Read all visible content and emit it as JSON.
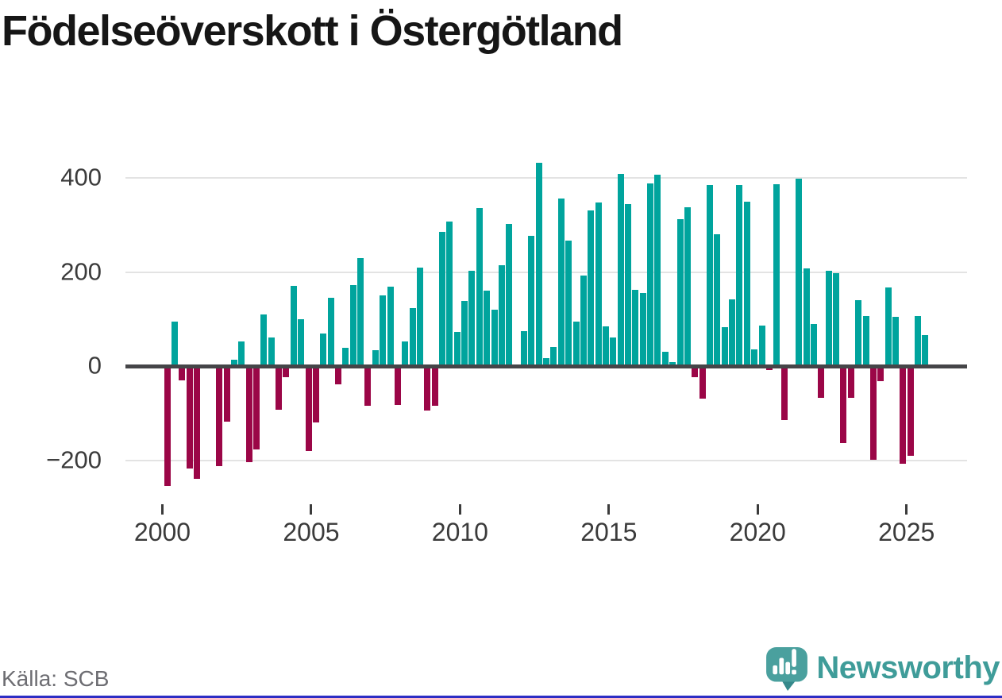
{
  "title": "Födelseöverskott i Östergötland",
  "source": "Källa: SCB",
  "branding": {
    "name": "Newsworthy",
    "icon": "newsworthy-speech-bubble-bar-chart-icon"
  },
  "colors": {
    "positive": "#00a49d",
    "negative": "#9b0647",
    "axis": "#454548",
    "grid": "#e3e3e3",
    "tick_text": "#3b3b3b",
    "source_text": "#6d6d72",
    "brand_teal": "#3f9c99",
    "icon_teal": "#4aa09e",
    "icon_tail": "#35898b",
    "bottom_accent": "#2d2dc4"
  },
  "chart_data": {
    "type": "bar",
    "frequency": "quarterly",
    "start_period": "2000 Q1",
    "end_period": "2025 Q3",
    "title": "Födelseöverskott i Östergötland",
    "xlabel": "",
    "ylabel": "",
    "ylim": [
      -270,
      460
    ],
    "grid": "horizontal",
    "legend": "none",
    "values": [
      -255,
      95,
      -31,
      -218,
      -239,
      0,
      0,
      -212,
      -118,
      14,
      53,
      -205,
      -178,
      110,
      61,
      -93,
      -24,
      170,
      100,
      -180,
      -120,
      70,
      145,
      -38,
      38,
      172,
      230,
      -84,
      34,
      150,
      169,
      -82,
      53,
      124,
      210,
      -95,
      -84,
      285,
      307,
      72,
      138,
      203,
      336,
      160,
      120,
      214,
      302,
      0,
      75,
      276,
      432,
      17,
      41,
      356,
      266,
      95,
      193,
      331,
      348,
      84,
      60,
      409,
      344,
      162,
      156,
      388,
      407,
      30,
      8,
      312,
      338,
      -24,
      -70,
      384,
      280,
      83,
      141,
      384,
      349,
      35,
      86,
      -8,
      386,
      -115,
      0,
      398,
      208,
      89,
      -67,
      202,
      197,
      -164,
      -67,
      140,
      106,
      -199,
      -32,
      167,
      105,
      -208,
      -190,
      106,
      65
    ],
    "y_ticks": [
      {
        "v": 400,
        "label": "400"
      },
      {
        "v": 200,
        "label": "200"
      },
      {
        "v": 0,
        "label": "0"
      },
      {
        "v": -200,
        "label": "−200"
      }
    ],
    "x_ticks": [
      {
        "year": 2000,
        "label": "2000"
      },
      {
        "year": 2005,
        "label": "2005"
      },
      {
        "year": 2010,
        "label": "2010"
      },
      {
        "year": 2015,
        "label": "2015"
      },
      {
        "year": 2020,
        "label": "2020"
      },
      {
        "year": 2025,
        "label": "2025"
      }
    ]
  }
}
